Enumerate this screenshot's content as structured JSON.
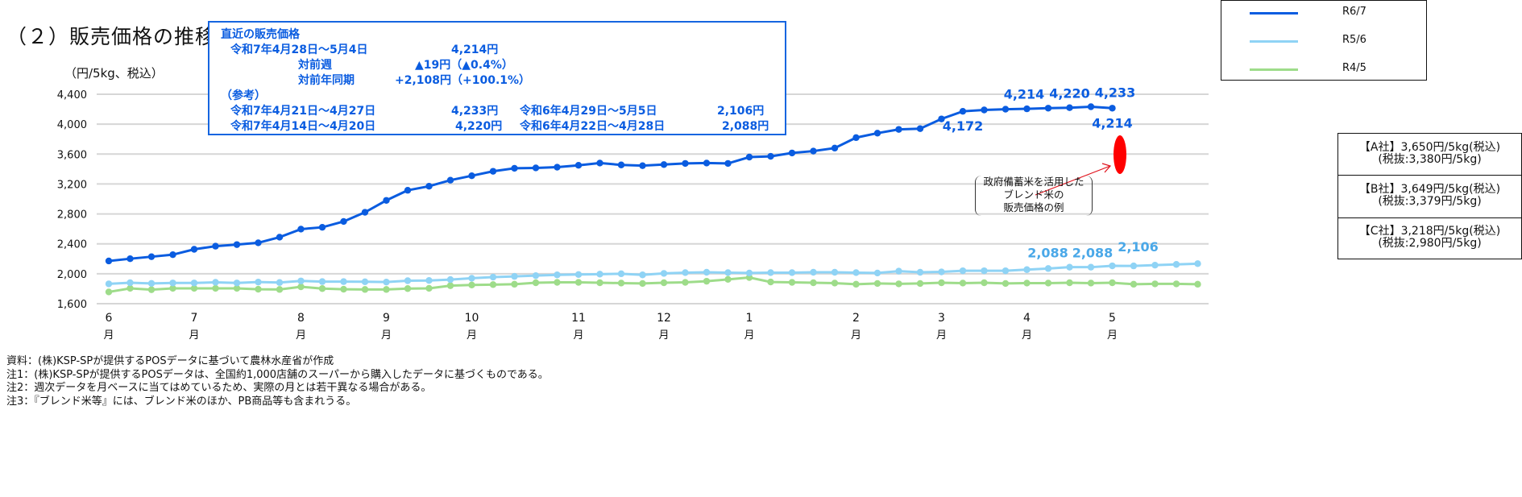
{
  "title": "（２）販売価格の推移",
  "unit_label": "（円/5kg、税込）",
  "info_box": {
    "heading": "直近の販売価格",
    "latest_period": "令和7年4月28日～5月4日",
    "latest_price": "4,214円",
    "wow_label": "対前週",
    "wow_value": "▲19円（▲0.4%）",
    "yoy_label": "対前年同期",
    "yoy_value": "+2,108円（+100.1%）",
    "reference_heading": "（参考）",
    "ref_rows": [
      {
        "period": "令和7年4月21日～4月27日",
        "price": "4,233円",
        "prev_period": "令和6年4月29日～5月5日",
        "prev_price": "2,106円"
      },
      {
        "period": "令和7年4月14日～4月20日",
        "price": "4,220円",
        "prev_period": "令和6年4月22日～4月28日",
        "prev_price": "2,088円"
      }
    ]
  },
  "blend_rice": {
    "caption_lines": [
      "政府備蓄米を活用した",
      "ブレンド米の",
      "販売価格の例"
    ],
    "companies": [
      {
        "line1": "【A社】3,650円/5kg(税込)",
        "line2": "(税抜:3,380円/5kg)"
      },
      {
        "line1": "【B社】3,649円/5kg(税込)",
        "line2": "(税抜:3,379円/5kg)"
      },
      {
        "line1": "【C社】3,218円/5kg(税込)",
        "line2": "(税抜:2,980円/5kg)"
      }
    ],
    "marker_color": "#ff0000"
  },
  "notes": [
    "資料：(株)KSP-SPが提供するPOSデータに基づいて農林水産省が作成",
    "注1：(株)KSP-SPが提供するPOSデータは、全国約1,000店舗のスーパーから購入したデータに基づくものである。",
    "注2：週次データを月ベースに当てはめているため、実際の月とは若干異なる場合がある。",
    "注3：『ブレンド米等』には、ブレンド米のほか、PB商品等も含まれうる。"
  ],
  "chart_data": {
    "type": "line",
    "ylim": [
      1600,
      4400
    ],
    "yticks": [
      "4,400",
      "4,000",
      "3,600",
      "3,200",
      "2,800",
      "2,400",
      "2,000",
      "1,600"
    ],
    "ytick_values": [
      4400,
      4000,
      3600,
      3200,
      2800,
      2400,
      2000,
      1600
    ],
    "grid": true,
    "legend_position": "top-right",
    "month_labels": [
      {
        "month": "6",
        "unit": "月",
        "week_index": 0
      },
      {
        "month": "7",
        "unit": "月",
        "week_index": 4
      },
      {
        "month": "8",
        "unit": "月",
        "week_index": 9
      },
      {
        "month": "9",
        "unit": "月",
        "week_index": 13
      },
      {
        "month": "10",
        "unit": "月",
        "week_index": 17
      },
      {
        "month": "11",
        "unit": "月",
        "week_index": 22
      },
      {
        "month": "12",
        "unit": "月",
        "week_index": 26
      },
      {
        "month": "1",
        "unit": "月",
        "week_index": 30
      },
      {
        "month": "2",
        "unit": "月",
        "week_index": 35
      },
      {
        "month": "3",
        "unit": "月",
        "week_index": 39
      },
      {
        "month": "4",
        "unit": "月",
        "week_index": 43
      },
      {
        "month": "5",
        "unit": "月",
        "week_index": 47
      }
    ],
    "series": [
      {
        "name": "R6/7",
        "color": "#0a5ce0",
        "values": [
          2171,
          2201,
          2228,
          2255,
          2327,
          2369,
          2390,
          2414,
          2489,
          2597,
          2621,
          2699,
          2822,
          2981,
          3116,
          3170,
          3251,
          3310,
          3370,
          3410,
          3415,
          3425,
          3450,
          3480,
          3455,
          3445,
          3460,
          3475,
          3480,
          3475,
          3560,
          3570,
          3615,
          3640,
          3680,
          3820,
          3880,
          3930,
          3940,
          4070,
          4172,
          4190,
          4200,
          4205,
          4214,
          4220,
          4233,
          4214
        ],
        "data_labels": [
          {
            "index": 40,
            "text": "4,172",
            "position": "below"
          },
          {
            "index": 44,
            "text": "4,214",
            "position": "above"
          },
          {
            "index": 45,
            "text": "4,220",
            "position": "above"
          },
          {
            "index": 46,
            "text": "4,233",
            "position": "above"
          },
          {
            "index": 47,
            "text": "4,214",
            "position": "below"
          }
        ]
      },
      {
        "name": "R5/6",
        "color": "#8fd3f5",
        "values": [
          1865,
          1880,
          1871,
          1877,
          1877,
          1886,
          1877,
          1889,
          1883,
          1904,
          1895,
          1895,
          1893,
          1889,
          1907,
          1910,
          1922,
          1940,
          1955,
          1965,
          1975,
          1985,
          1990,
          1995,
          2000,
          1985,
          2005,
          2015,
          2020,
          2015,
          2010,
          2015,
          2015,
          2020,
          2020,
          2015,
          2010,
          2035,
          2020,
          2025,
          2040,
          2040,
          2040,
          2055,
          2070,
          2088,
          2088,
          2106,
          2105,
          2115,
          2125,
          2135
        ],
        "data_labels": [
          {
            "index": 45,
            "text": "2,088",
            "position": "above"
          },
          {
            "index": 46,
            "text": "2,088",
            "position": "above"
          },
          {
            "index": 47,
            "text": "2,106",
            "position": "above"
          }
        ]
      },
      {
        "name": "R4/5",
        "color": "#9edc8a",
        "values": [
          1757,
          1805,
          1787,
          1805,
          1805,
          1805,
          1805,
          1793,
          1790,
          1826,
          1802,
          1793,
          1790,
          1790,
          1802,
          1805,
          1841,
          1850,
          1855,
          1860,
          1880,
          1885,
          1885,
          1880,
          1875,
          1870,
          1880,
          1885,
          1900,
          1925,
          1950,
          1890,
          1885,
          1880,
          1875,
          1860,
          1870,
          1865,
          1870,
          1880,
          1875,
          1880,
          1870,
          1875,
          1875,
          1880,
          1875,
          1880,
          1860,
          1865,
          1865,
          1860
        ],
        "data_labels": []
      }
    ]
  }
}
